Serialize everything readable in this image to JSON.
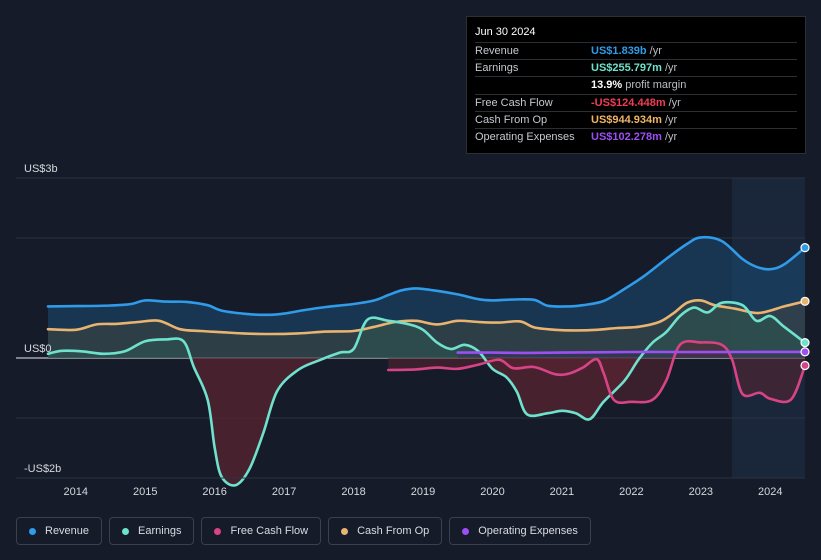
{
  "tooltip": {
    "date": "Jun 30 2024",
    "rows": [
      {
        "label": "Revenue",
        "value": "US$1.839b",
        "suffix": "/yr",
        "color": "#2f9be9"
      },
      {
        "label": "Earnings",
        "value": "US$255.797m",
        "suffix": "/yr",
        "color": "#6ee2cd"
      },
      {
        "label": "",
        "value": "13.9%",
        "suffix": "profit margin",
        "color": "#ffffff"
      },
      {
        "label": "Free Cash Flow",
        "value": "-US$124.448m",
        "suffix": "/yr",
        "color": "#ef3d56"
      },
      {
        "label": "Cash From Op",
        "value": "US$944.934m",
        "suffix": "/yr",
        "color": "#f0b464"
      },
      {
        "label": "Operating Expenses",
        "value": "US$102.278m",
        "suffix": "/yr",
        "color": "#9c4ff2"
      }
    ]
  },
  "legend": [
    {
      "label": "Revenue",
      "color": "#2f9be9"
    },
    {
      "label": "Earnings",
      "color": "#6ee2cd"
    },
    {
      "label": "Free Cash Flow",
      "color": "#d74485"
    },
    {
      "label": "Cash From Op",
      "color": "#e8b46f"
    },
    {
      "label": "Operating Expenses",
      "color": "#9c4ff2"
    }
  ],
  "chart_data": {
    "type": "area",
    "title": "",
    "y_tick_labels": [
      {
        "label": "US$3b",
        "value": 3000
      },
      {
        "label": "US$0",
        "value": 0
      },
      {
        "label": "-US$2b",
        "value": -2000
      }
    ],
    "ylim": [
      -2000,
      3000
    ],
    "xlim": [
      2013.6,
      2024.5
    ],
    "x_ticks": [
      2014,
      2015,
      2016,
      2017,
      2018,
      2019,
      2020,
      2021,
      2022,
      2023,
      2024
    ],
    "x_tick_labels": [
      "2014",
      "2015",
      "2016",
      "2017",
      "2018",
      "2019",
      "2020",
      "2021",
      "2022",
      "2023",
      "2024"
    ],
    "highlight_from": 2023.45,
    "series": [
      {
        "name": "Revenue",
        "color": "#2f9be9",
        "points": [
          [
            2013.6,
            860
          ],
          [
            2014.0,
            865
          ],
          [
            2014.5,
            875
          ],
          [
            2014.8,
            900
          ],
          [
            2015.0,
            960
          ],
          [
            2015.3,
            940
          ],
          [
            2015.6,
            935
          ],
          [
            2015.9,
            880
          ],
          [
            2016.1,
            790
          ],
          [
            2016.5,
            730
          ],
          [
            2016.8,
            720
          ],
          [
            2017.0,
            740
          ],
          [
            2017.3,
            800
          ],
          [
            2017.6,
            850
          ],
          [
            2018.0,
            900
          ],
          [
            2018.3,
            960
          ],
          [
            2018.5,
            1050
          ],
          [
            2018.7,
            1130
          ],
          [
            2018.9,
            1160
          ],
          [
            2019.2,
            1120
          ],
          [
            2019.5,
            1060
          ],
          [
            2019.8,
            980
          ],
          [
            2020.0,
            960
          ],
          [
            2020.3,
            975
          ],
          [
            2020.6,
            970
          ],
          [
            2020.8,
            870
          ],
          [
            2021.1,
            860
          ],
          [
            2021.3,
            880
          ],
          [
            2021.6,
            950
          ],
          [
            2021.9,
            1150
          ],
          [
            2022.2,
            1380
          ],
          [
            2022.5,
            1650
          ],
          [
            2022.8,
            1900
          ],
          [
            2023.0,
            2010
          ],
          [
            2023.3,
            1950
          ],
          [
            2023.6,
            1650
          ],
          [
            2023.8,
            1520
          ],
          [
            2024.0,
            1480
          ],
          [
            2024.2,
            1560
          ],
          [
            2024.5,
            1839
          ]
        ]
      },
      {
        "name": "Cash From Op",
        "color": "#e8b46f",
        "points": [
          [
            2013.6,
            480
          ],
          [
            2014.0,
            470
          ],
          [
            2014.3,
            560
          ],
          [
            2014.6,
            570
          ],
          [
            2014.9,
            600
          ],
          [
            2015.2,
            620
          ],
          [
            2015.5,
            480
          ],
          [
            2015.8,
            450
          ],
          [
            2016.1,
            430
          ],
          [
            2016.4,
            410
          ],
          [
            2016.8,
            400
          ],
          [
            2017.2,
            410
          ],
          [
            2017.6,
            440
          ],
          [
            2018.0,
            450
          ],
          [
            2018.3,
            520
          ],
          [
            2018.6,
            600
          ],
          [
            2018.9,
            620
          ],
          [
            2019.2,
            560
          ],
          [
            2019.5,
            620
          ],
          [
            2019.8,
            600
          ],
          [
            2020.1,
            590
          ],
          [
            2020.4,
            610
          ],
          [
            2020.6,
            510
          ],
          [
            2020.9,
            470
          ],
          [
            2021.2,
            460
          ],
          [
            2021.5,
            470
          ],
          [
            2021.8,
            500
          ],
          [
            2022.1,
            520
          ],
          [
            2022.4,
            600
          ],
          [
            2022.6,
            740
          ],
          [
            2022.8,
            920
          ],
          [
            2023.0,
            960
          ],
          [
            2023.2,
            880
          ],
          [
            2023.5,
            820
          ],
          [
            2023.8,
            750
          ],
          [
            2024.0,
            790
          ],
          [
            2024.2,
            860
          ],
          [
            2024.5,
            944.934
          ]
        ]
      },
      {
        "name": "Earnings",
        "color": "#6ee2cd",
        "points": [
          [
            2013.6,
            70
          ],
          [
            2013.8,
            120
          ],
          [
            2014.1,
            110
          ],
          [
            2014.4,
            70
          ],
          [
            2014.7,
            110
          ],
          [
            2015.0,
            280
          ],
          [
            2015.3,
            310
          ],
          [
            2015.55,
            280
          ],
          [
            2015.7,
            -150
          ],
          [
            2015.9,
            -700
          ],
          [
            2016.0,
            -1500
          ],
          [
            2016.1,
            -1980
          ],
          [
            2016.3,
            -2120
          ],
          [
            2016.5,
            -1850
          ],
          [
            2016.7,
            -1250
          ],
          [
            2016.9,
            -550
          ],
          [
            2017.2,
            -200
          ],
          [
            2017.5,
            -40
          ],
          [
            2017.8,
            90
          ],
          [
            2018.0,
            150
          ],
          [
            2018.2,
            640
          ],
          [
            2018.5,
            620
          ],
          [
            2018.8,
            560
          ],
          [
            2019.0,
            470
          ],
          [
            2019.2,
            260
          ],
          [
            2019.4,
            150
          ],
          [
            2019.6,
            220
          ],
          [
            2019.8,
            110
          ],
          [
            2020.0,
            -180
          ],
          [
            2020.2,
            -320
          ],
          [
            2020.35,
            -560
          ],
          [
            2020.5,
            -940
          ],
          [
            2020.8,
            -920
          ],
          [
            2021.0,
            -880
          ],
          [
            2021.2,
            -920
          ],
          [
            2021.4,
            -1020
          ],
          [
            2021.6,
            -730
          ],
          [
            2021.9,
            -380
          ],
          [
            2022.1,
            -30
          ],
          [
            2022.3,
            250
          ],
          [
            2022.5,
            430
          ],
          [
            2022.7,
            700
          ],
          [
            2022.9,
            840
          ],
          [
            2023.1,
            760
          ],
          [
            2023.3,
            920
          ],
          [
            2023.6,
            880
          ],
          [
            2023.8,
            620
          ],
          [
            2024.0,
            700
          ],
          [
            2024.2,
            520
          ],
          [
            2024.5,
            255.797
          ]
        ]
      },
      {
        "name": "Free Cash Flow",
        "color": "#d74485",
        "points": [
          [
            2018.5,
            -200
          ],
          [
            2018.9,
            -190
          ],
          [
            2019.2,
            -160
          ],
          [
            2019.5,
            -180
          ],
          [
            2019.8,
            -110
          ],
          [
            2020.1,
            -30
          ],
          [
            2020.3,
            -170
          ],
          [
            2020.6,
            -150
          ],
          [
            2020.9,
            -270
          ],
          [
            2021.1,
            -260
          ],
          [
            2021.3,
            -160
          ],
          [
            2021.5,
            -20
          ],
          [
            2021.6,
            -250
          ],
          [
            2021.75,
            -700
          ],
          [
            2022.0,
            -730
          ],
          [
            2022.3,
            -700
          ],
          [
            2022.5,
            -380
          ],
          [
            2022.7,
            220
          ],
          [
            2023.0,
            260
          ],
          [
            2023.3,
            220
          ],
          [
            2023.45,
            -30
          ],
          [
            2023.6,
            -600
          ],
          [
            2023.85,
            -580
          ],
          [
            2024.0,
            -680
          ],
          [
            2024.3,
            -690
          ],
          [
            2024.5,
            -124.448
          ]
        ]
      },
      {
        "name": "Operating Expenses",
        "color": "#9c4ff2",
        "points": [
          [
            2019.5,
            90
          ],
          [
            2020.0,
            90
          ],
          [
            2020.5,
            85
          ],
          [
            2021.0,
            90
          ],
          [
            2021.5,
            95
          ],
          [
            2022.0,
            100
          ],
          [
            2022.5,
            100
          ],
          [
            2023.0,
            98
          ],
          [
            2023.5,
            100
          ],
          [
            2024.0,
            102
          ],
          [
            2024.5,
            102.278
          ]
        ]
      }
    ]
  }
}
